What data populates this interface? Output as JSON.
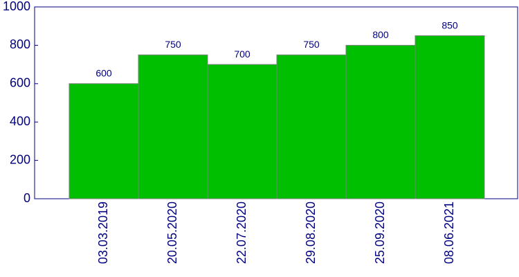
{
  "chart_data": {
    "type": "bar",
    "categories": [
      "03.03.2019",
      "20.05.2020",
      "22.07.2020",
      "29.08.2020",
      "25.09.2020",
      "08.06.2021"
    ],
    "values": [
      600,
      750,
      700,
      750,
      800,
      850
    ],
    "color": "#00bf00",
    "ylim": [
      0,
      1000
    ],
    "yticks": [
      0,
      200,
      400,
      600,
      800,
      1000
    ],
    "grid": false
  }
}
